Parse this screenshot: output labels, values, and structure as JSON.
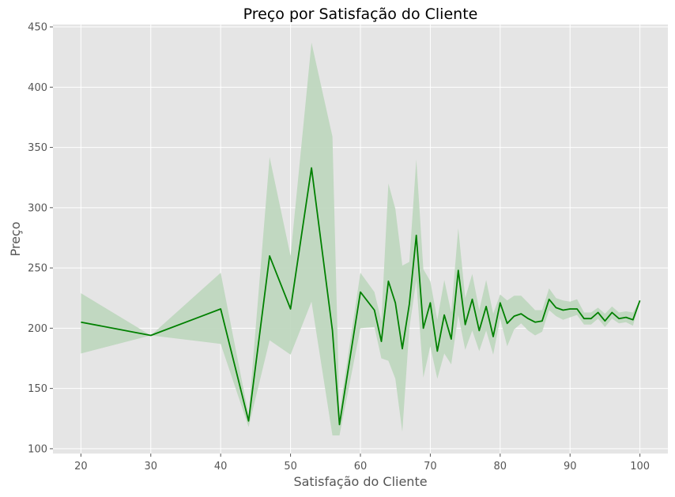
{
  "chart_data": {
    "type": "line",
    "title": "Preço por Satisfação do Cliente",
    "xlabel": "Satisfação do Cliente",
    "ylabel": "Preço",
    "xlim": [
      16,
      104
    ],
    "ylim": [
      96,
      452
    ],
    "xticks": [
      20,
      30,
      40,
      50,
      60,
      70,
      80,
      90,
      100
    ],
    "yticks": [
      100,
      150,
      200,
      250,
      300,
      350,
      400,
      450
    ],
    "grid": true,
    "colors": {
      "background": "#e5e5e5",
      "grid": "#ffffff",
      "line": "#008000",
      "band": "#bcd6bc"
    },
    "series": [
      {
        "x": [
          20,
          30,
          40,
          44,
          47,
          50,
          53,
          56,
          57,
          60,
          62,
          63,
          64,
          65,
          66,
          67,
          68,
          69,
          70,
          71,
          72,
          73,
          74,
          75,
          76,
          77,
          78,
          79,
          80,
          81,
          82,
          83,
          84,
          85,
          86,
          87,
          88,
          89,
          90,
          91,
          92,
          93,
          94,
          95,
          96,
          97,
          98,
          99,
          100
        ],
        "y": [
          205,
          194,
          216,
          123,
          260,
          216,
          333,
          198,
          120,
          230,
          215,
          189,
          239,
          221,
          183,
          220,
          277,
          200,
          221,
          181,
          211,
          191,
          248,
          203,
          224,
          198,
          218,
          193,
          221,
          204,
          210,
          212,
          208,
          205,
          206,
          224,
          217,
          215,
          216,
          216,
          208,
          208,
          213,
          206,
          213,
          208,
          209,
          207,
          223
        ],
        "lower": [
          179,
          194,
          187,
          118,
          190,
          178,
          222,
          111,
          111,
          200,
          201,
          175,
          173,
          158,
          114,
          200,
          240,
          159,
          185,
          158,
          179,
          170,
          211,
          182,
          198,
          181,
          198,
          178,
          208,
          185,
          199,
          204,
          198,
          194,
          197,
          215,
          210,
          207,
          209,
          211,
          203,
          203,
          208,
          201,
          208,
          204,
          205,
          202,
          223
        ],
        "upper": [
          229,
          194,
          246,
          128,
          342,
          260,
          437,
          359,
          130,
          246,
          230,
          206,
          320,
          299,
          252,
          255,
          340,
          249,
          239,
          207,
          240,
          213,
          283,
          225,
          245,
          215,
          240,
          212,
          228,
          223,
          227,
          227,
          221,
          215,
          215,
          233,
          225,
          223,
          222,
          224,
          213,
          213,
          217,
          212,
          218,
          213,
          214,
          213,
          223
        ]
      }
    ]
  }
}
